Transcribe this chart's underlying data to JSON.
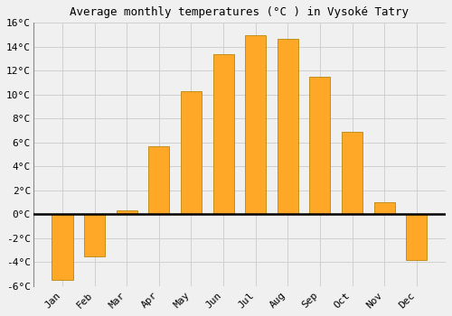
{
  "title": "Average monthly temperatures (°C ) in Vysoké Tatry",
  "months": [
    "Jan",
    "Feb",
    "Mar",
    "Apr",
    "May",
    "Jun",
    "Jul",
    "Aug",
    "Sep",
    "Oct",
    "Nov",
    "Dec"
  ],
  "values": [
    -5.5,
    -3.5,
    0.3,
    5.7,
    10.3,
    13.4,
    15.0,
    14.7,
    11.5,
    6.9,
    1.0,
    -3.8
  ],
  "bar_color": "#FFA726",
  "bar_edge_color": "#B8860B",
  "ylim_min": -6,
  "ylim_max": 16,
  "yticks": [
    -6,
    -4,
    -2,
    0,
    2,
    4,
    6,
    8,
    10,
    12,
    14,
    16
  ],
  "background_color": "#f0f0f0",
  "grid_color": "#d0d0d0",
  "title_fontsize": 9,
  "tick_fontsize": 8,
  "bar_width": 0.65
}
